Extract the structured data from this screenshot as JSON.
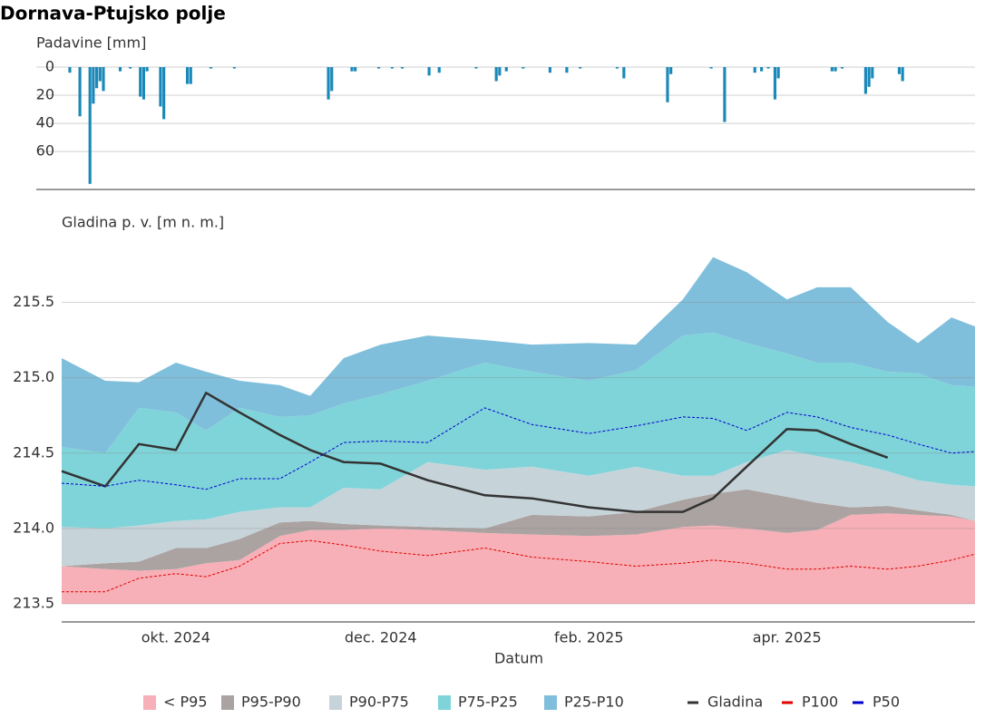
{
  "title": "Dornava-Ptujsko polje",
  "chart_data": [
    {
      "type": "bar",
      "y_label": "Padavine [mm]",
      "color": "#1a88b8",
      "inverted": true,
      "xlim": [
        "2024-08-28",
        "2025-05-27"
      ],
      "ylim": [
        0,
        87
      ],
      "yticks": [
        0,
        20,
        40,
        60
      ],
      "grid": true,
      "x": [
        "2024-08-30",
        "2024-09-02",
        "2024-09-05",
        "2024-09-06",
        "2024-09-07",
        "2024-09-08",
        "2024-09-09",
        "2024-09-14",
        "2024-09-17",
        "2024-09-20",
        "2024-09-21",
        "2024-09-22",
        "2024-09-26",
        "2024-09-27",
        "2024-10-04",
        "2024-10-05",
        "2024-10-11",
        "2024-10-18",
        "2024-11-15",
        "2024-11-16",
        "2024-11-22",
        "2024-11-23",
        "2024-11-30",
        "2024-12-04",
        "2024-12-07",
        "2024-12-15",
        "2024-12-18",
        "2024-12-29",
        "2025-01-04",
        "2025-01-05",
        "2025-01-07",
        "2025-01-12",
        "2025-01-20",
        "2025-01-25",
        "2025-01-29",
        "2025-02-09",
        "2025-02-11",
        "2025-02-24",
        "2025-02-25",
        "2025-03-09",
        "2025-03-13",
        "2025-03-22",
        "2025-03-24",
        "2025-03-26",
        "2025-03-28",
        "2025-03-29",
        "2025-04-14",
        "2025-04-15",
        "2025-04-17",
        "2025-04-24",
        "2025-04-25",
        "2025-04-26",
        "2025-05-04",
        "2025-05-05"
      ],
      "values": [
        4,
        35,
        83,
        26,
        15,
        10,
        17,
        3,
        1,
        21,
        23,
        3,
        28,
        37,
        12,
        12,
        1,
        1,
        23,
        17,
        3,
        3,
        1,
        1,
        1,
        6,
        4,
        1,
        10,
        6,
        3,
        1,
        4,
        4,
        1,
        1,
        8,
        25,
        5,
        1,
        39,
        4,
        3,
        1,
        23,
        8,
        3,
        3,
        1,
        19,
        14,
        8,
        5,
        10
      ]
    },
    {
      "type": "area_line",
      "y_label": "Gladina p. v. [m n. m.]",
      "x_label": "Datum",
      "xlim": [
        "2024-08-28",
        "2025-05-27"
      ],
      "xticks": [
        {
          "value": "2024-10-01",
          "label": "okt. 2024"
        },
        {
          "value": "2024-12-01",
          "label": "dec. 2024"
        },
        {
          "value": "2025-02-01",
          "label": "feb. 2025"
        },
        {
          "value": "2025-04-01",
          "label": "apr. 2025"
        }
      ],
      "ylim": [
        213.38,
        215.93
      ],
      "yticks": [
        213.5,
        {
          "value": 214,
          "label": "214.0"
        },
        214.5,
        {
          "value": 215,
          "label": "215.0"
        },
        215.5
      ],
      "grid": true,
      "band_floor": 213.5,
      "legend": "bottom",
      "x": [
        "2024-08-28",
        "2024-09-10",
        "2024-09-20",
        "2024-10-01",
        "2024-10-10",
        "2024-10-20",
        "2024-11-01",
        "2024-11-10",
        "2024-11-20",
        "2024-12-01",
        "2024-12-15",
        "2025-01-01",
        "2025-01-15",
        "2025-02-01",
        "2025-02-15",
        "2025-03-01",
        "2025-03-10",
        "2025-03-20",
        "2025-04-01",
        "2025-04-10",
        "2025-04-20",
        "2025-05-01",
        "2025-05-10",
        "2025-05-20",
        "2025-05-27"
      ],
      "series": [
        {
          "name": "< P95",
          "kind": "band",
          "color": "#f7b0b7",
          "values": [
            213.75,
            213.73,
            213.72,
            213.73,
            213.77,
            213.79,
            213.95,
            213.99,
            213.99,
            214.0,
            213.99,
            213.97,
            213.96,
            213.95,
            213.96,
            214.01,
            214.02,
            214.0,
            213.97,
            213.99,
            214.09,
            214.1,
            214.09,
            214.08,
            214.05
          ]
        },
        {
          "name": "P95-P90",
          "kind": "band",
          "color": "#aba3a2",
          "values": [
            213.75,
            213.77,
            213.78,
            213.87,
            213.87,
            213.93,
            214.04,
            214.05,
            214.03,
            214.02,
            214.01,
            214.0,
            214.09,
            214.08,
            214.11,
            214.19,
            214.23,
            214.26,
            214.21,
            214.17,
            214.14,
            214.15,
            214.12,
            214.09,
            214.05
          ]
        },
        {
          "name": "P90-P75",
          "kind": "band",
          "color": "#c6d4da",
          "values": [
            214.01,
            214.0,
            214.02,
            214.05,
            214.06,
            214.11,
            214.14,
            214.14,
            214.27,
            214.26,
            214.44,
            214.39,
            214.41,
            214.35,
            214.41,
            214.35,
            214.35,
            214.44,
            214.52,
            214.48,
            214.44,
            214.38,
            214.32,
            214.29,
            214.28
          ]
        },
        {
          "name": "P75-P25",
          "kind": "band",
          "color": "#7fd4d9",
          "values": [
            214.54,
            214.5,
            214.8,
            214.77,
            214.65,
            214.8,
            214.74,
            214.75,
            214.83,
            214.89,
            214.98,
            215.1,
            215.04,
            214.98,
            215.05,
            215.28,
            215.3,
            215.23,
            215.16,
            215.1,
            215.1,
            215.04,
            215.03,
            214.95,
            214.94
          ]
        },
        {
          "name": "P25-P10",
          "kind": "band",
          "color": "#80bfdb",
          "values": [
            215.13,
            214.98,
            214.97,
            215.1,
            215.04,
            214.98,
            214.95,
            214.88,
            215.13,
            215.22,
            215.28,
            215.25,
            215.22,
            215.23,
            215.22,
            215.52,
            215.8,
            215.7,
            215.52,
            215.6,
            215.6,
            215.37,
            215.23,
            215.4,
            215.34
          ]
        },
        {
          "name": "Gladina",
          "kind": "line",
          "color": "#333333",
          "width": 2.5,
          "values": [
            214.38,
            214.28,
            214.56,
            214.52,
            214.9,
            214.77,
            214.62,
            214.52,
            214.44,
            214.43,
            214.32,
            214.22,
            214.2,
            214.14,
            214.11,
            214.11,
            214.2,
            214.41,
            214.66,
            214.65,
            214.56,
            214.47,
            null,
            null,
            null
          ]
        },
        {
          "name": "P100",
          "kind": "line",
          "color": "#e00000",
          "dash": true,
          "width": 1,
          "values": [
            213.58,
            213.58,
            213.67,
            213.7,
            213.68,
            213.75,
            213.9,
            213.92,
            213.89,
            213.85,
            213.82,
            213.87,
            213.81,
            213.78,
            213.75,
            213.77,
            213.79,
            213.77,
            213.73,
            213.73,
            213.75,
            213.73,
            213.75,
            213.79,
            213.83
          ]
        },
        {
          "name": "P50",
          "kind": "line",
          "color": "#0000cc",
          "dash": true,
          "width": 1,
          "values": [
            214.3,
            214.28,
            214.32,
            214.29,
            214.26,
            214.33,
            214.33,
            214.44,
            214.57,
            214.58,
            214.57,
            214.8,
            214.69,
            214.63,
            214.68,
            214.74,
            214.73,
            214.65,
            214.77,
            214.74,
            214.67,
            214.62,
            214.56,
            214.5,
            214.51
          ]
        }
      ]
    }
  ]
}
